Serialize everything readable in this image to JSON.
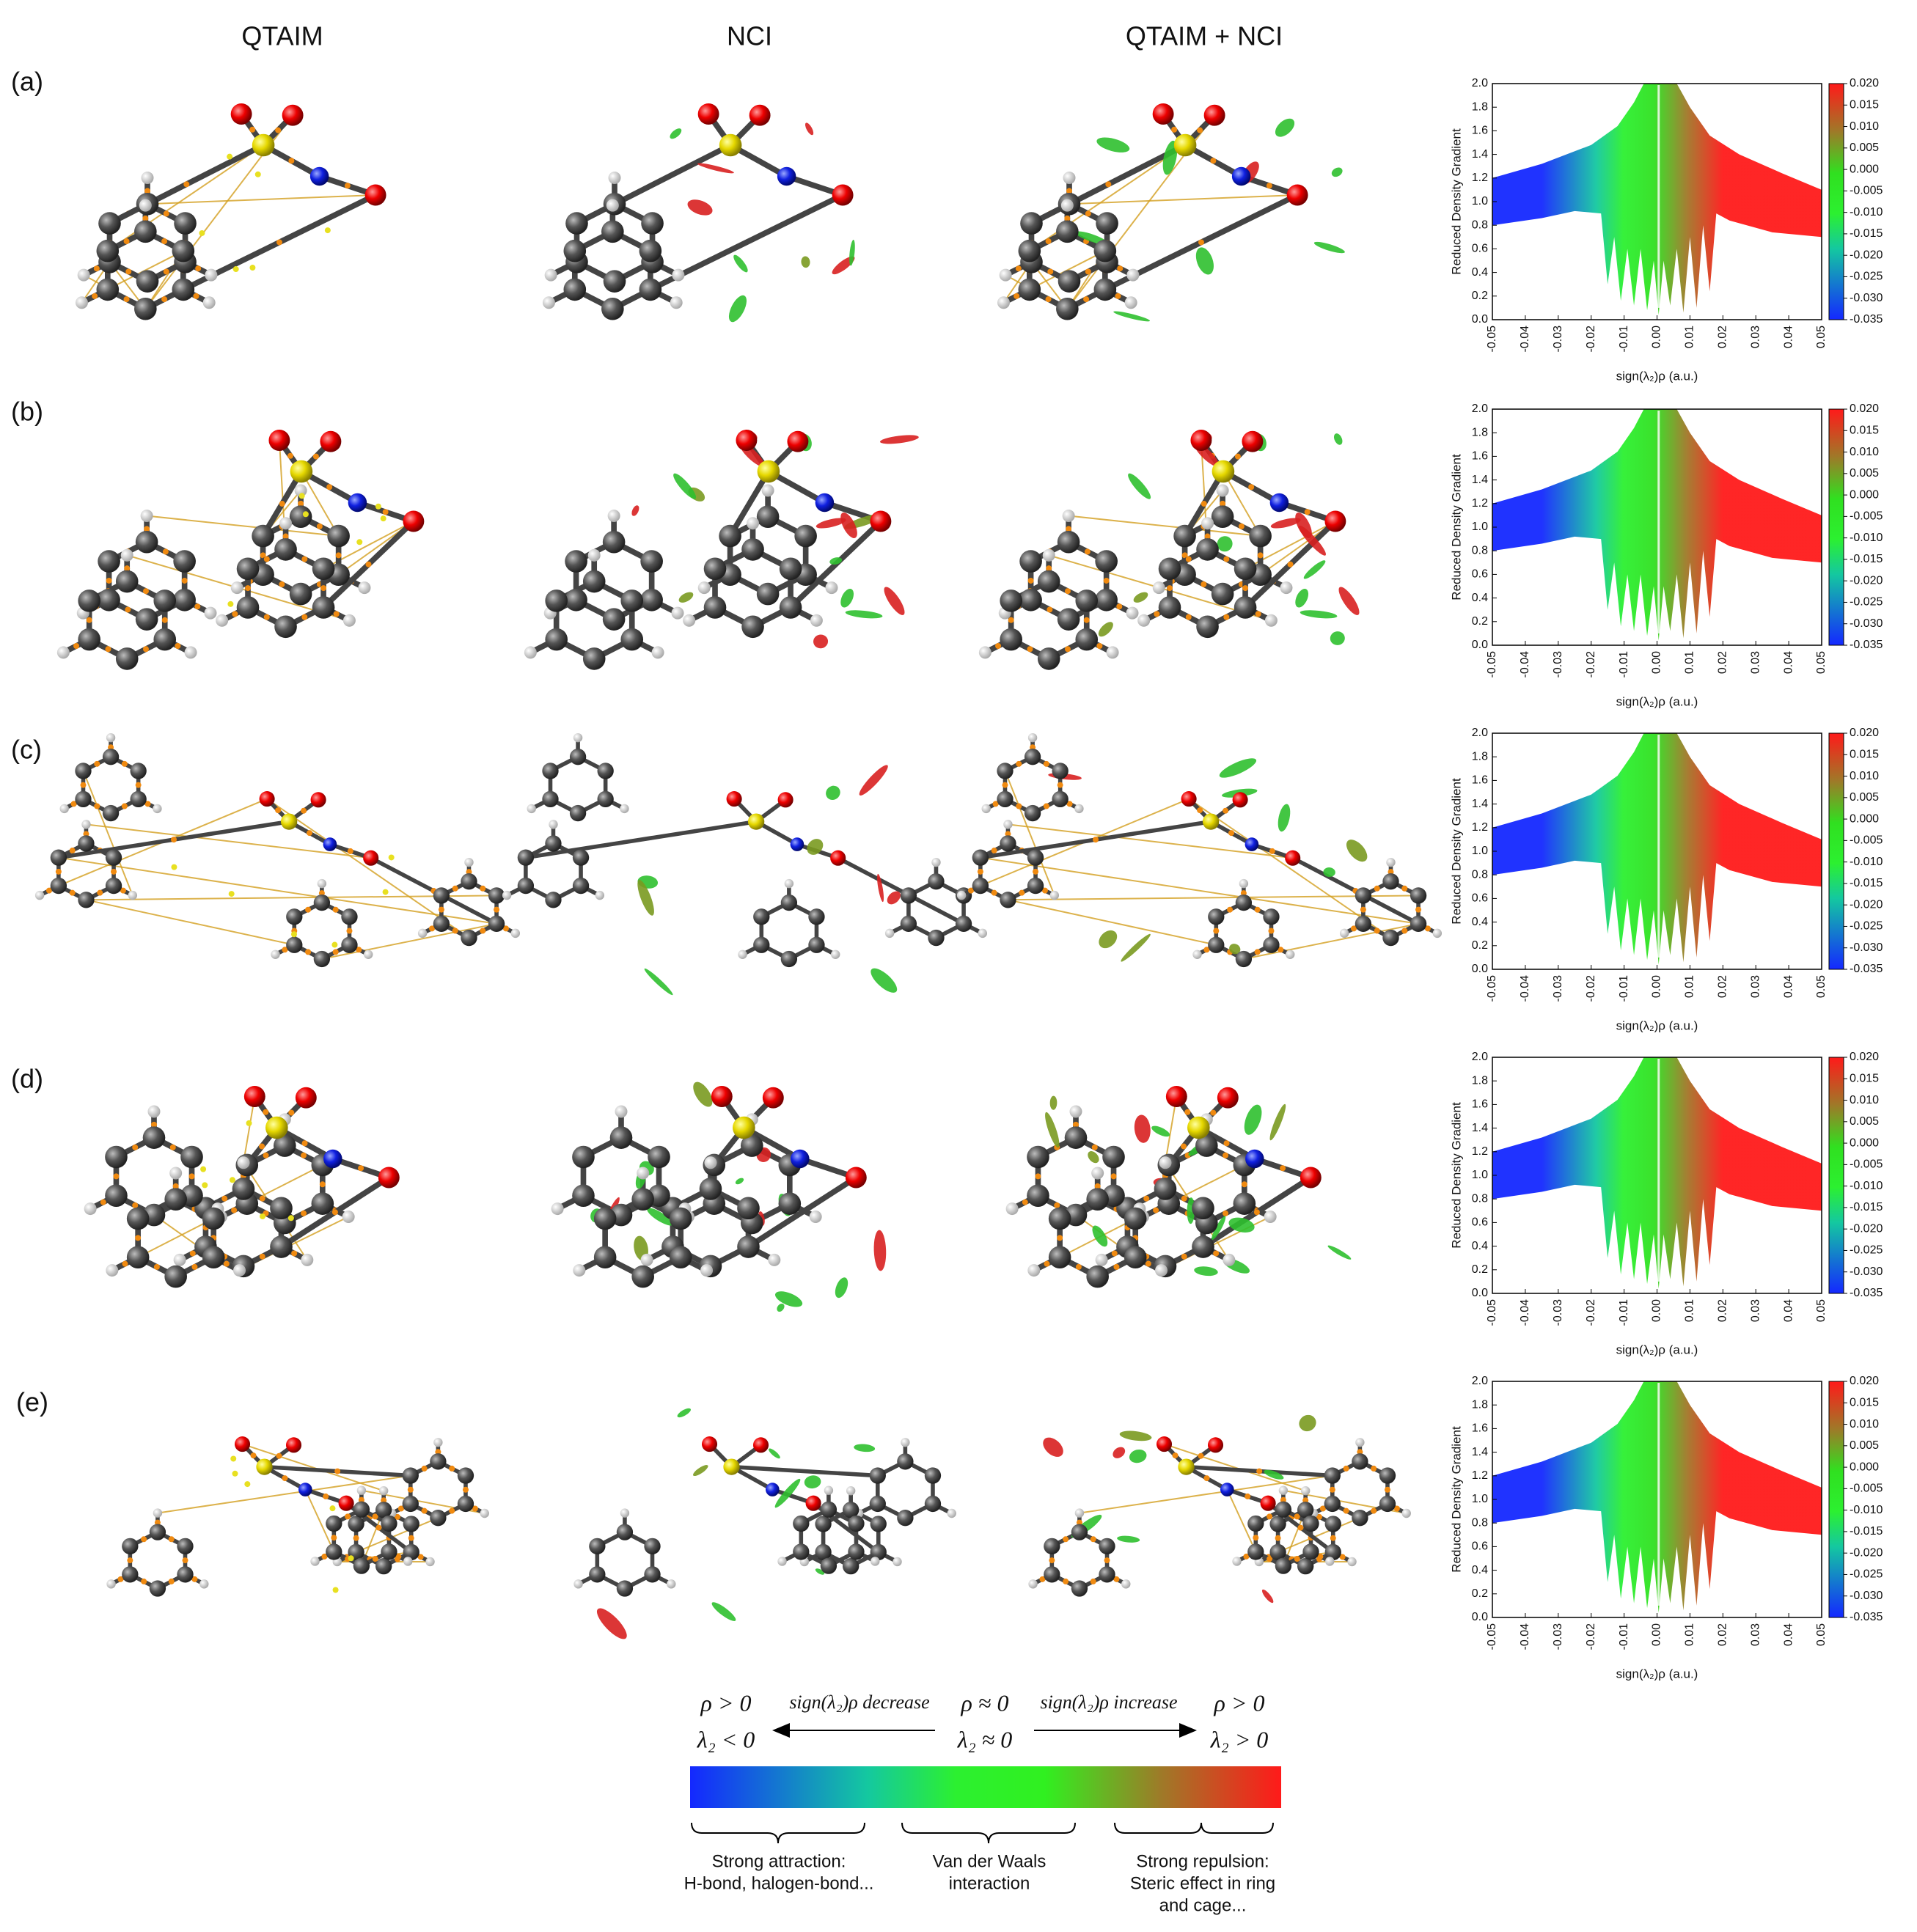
{
  "columns": [
    "QTAIM",
    "NCI",
    "QTAIM + NCI"
  ],
  "rows": [
    "(a)",
    "(b)",
    "(c)",
    "(d)",
    "(e)"
  ],
  "chart_data": [
    {
      "type": "scatter",
      "xlabel": "sign(λ₂)ρ (a.u.)",
      "ylabel": "Reduced Density Gradient",
      "xlim": [
        -0.05,
        0.05
      ],
      "xticks": [
        -0.05,
        -0.04,
        -0.03,
        -0.02,
        -0.01,
        {
          "value": 0,
          "label": "0.00"
        },
        0.01,
        0.02,
        0.03,
        0.04,
        0.05
      ],
      "ylim": [
        0,
        2
      ],
      "yticks": [
        {
          "value": 0,
          "label": "0.0"
        },
        0.2,
        0.4,
        0.6,
        0.8,
        {
          "value": 1,
          "label": "1.0"
        },
        1.2,
        1.4,
        1.6,
        1.8,
        {
          "value": 2,
          "label": "2.0"
        }
      ],
      "colorbar": {
        "lim": [
          -0.035,
          0.02
        ],
        "ticks": [
          {
            "value": 0.02,
            "label": "0.020"
          },
          0.015,
          {
            "value": 0.01,
            "label": "0.010"
          },
          0.005,
          {
            "value": 0,
            "label": "0.000"
          },
          -0.005,
          {
            "value": -0.01,
            "label": "-0.010"
          },
          -0.015,
          {
            "value": -0.02,
            "label": "-0.020"
          },
          -0.025,
          {
            "value": -0.03,
            "label": "-0.030"
          },
          -0.035
        ]
      }
    },
    {
      "type": "scatter",
      "xlabel": "sign(λ₂)ρ (a.u.)",
      "ylabel": "Reduced Density Gradient",
      "xlim": [
        -0.05,
        0.05
      ],
      "xticks": [
        -0.05,
        -0.04,
        -0.03,
        -0.02,
        -0.01,
        {
          "value": 0,
          "label": "0.00"
        },
        0.01,
        0.02,
        0.03,
        0.04,
        0.05
      ],
      "ylim": [
        0,
        2
      ],
      "yticks": [
        {
          "value": 0,
          "label": "0.0"
        },
        0.2,
        0.4,
        0.6,
        0.8,
        {
          "value": 1,
          "label": "1.0"
        },
        1.2,
        1.4,
        1.6,
        1.8,
        {
          "value": 2,
          "label": "2.0"
        }
      ],
      "colorbar": {
        "lim": [
          -0.035,
          0.02
        ],
        "ticks": [
          {
            "value": 0.02,
            "label": "0.020"
          },
          0.015,
          {
            "value": 0.01,
            "label": "0.010"
          },
          0.005,
          {
            "value": 0,
            "label": "0.000"
          },
          -0.005,
          {
            "value": -0.01,
            "label": "-0.010"
          },
          -0.015,
          {
            "value": -0.02,
            "label": "-0.020"
          },
          -0.025,
          {
            "value": -0.03,
            "label": "-0.030"
          },
          -0.035
        ]
      }
    },
    {
      "type": "scatter",
      "xlabel": "sign(λ₂)ρ (a.u.)",
      "ylabel": "Reduced Density Gradient",
      "xlim": [
        -0.05,
        0.05
      ],
      "xticks": [
        -0.05,
        -0.04,
        -0.03,
        -0.02,
        -0.01,
        {
          "value": 0,
          "label": "0.00"
        },
        0.01,
        0.02,
        0.03,
        0.04,
        0.05
      ],
      "ylim": [
        0,
        2
      ],
      "yticks": [
        {
          "value": 0,
          "label": "0.0"
        },
        0.2,
        0.4,
        0.6,
        0.8,
        {
          "value": 1,
          "label": "1.0"
        },
        1.2,
        1.4,
        1.6,
        1.8,
        {
          "value": 2,
          "label": "2.0"
        }
      ],
      "colorbar": {
        "lim": [
          -0.035,
          0.02
        ],
        "ticks": [
          {
            "value": 0.02,
            "label": "0.020"
          },
          0.015,
          {
            "value": 0.01,
            "label": "0.010"
          },
          0.005,
          {
            "value": 0,
            "label": "0.000"
          },
          -0.005,
          {
            "value": -0.01,
            "label": "-0.010"
          },
          -0.015,
          {
            "value": -0.02,
            "label": "-0.020"
          },
          -0.025,
          {
            "value": -0.03,
            "label": "-0.030"
          },
          -0.035
        ]
      }
    },
    {
      "type": "scatter",
      "xlabel": "sign(λ₂)ρ (a.u.)",
      "ylabel": "Reduced Density Gradient",
      "xlim": [
        -0.05,
        0.05
      ],
      "xticks": [
        -0.05,
        -0.04,
        -0.03,
        -0.02,
        -0.01,
        {
          "value": 0,
          "label": "0.00"
        },
        0.01,
        0.02,
        0.03,
        0.04,
        0.05
      ],
      "ylim": [
        0,
        2
      ],
      "yticks": [
        {
          "value": 0,
          "label": "0.0"
        },
        0.2,
        0.4,
        0.6,
        0.8,
        {
          "value": 1,
          "label": "1.0"
        },
        1.2,
        1.4,
        1.6,
        1.8,
        {
          "value": 2,
          "label": "2.0"
        }
      ],
      "colorbar": {
        "lim": [
          -0.035,
          0.02
        ],
        "ticks": [
          {
            "value": 0.02,
            "label": "0.020"
          },
          0.015,
          {
            "value": 0.01,
            "label": "0.010"
          },
          0.005,
          {
            "value": 0,
            "label": "0.000"
          },
          -0.005,
          {
            "value": -0.01,
            "label": "-0.010"
          },
          -0.015,
          {
            "value": -0.02,
            "label": "-0.020"
          },
          -0.025,
          {
            "value": -0.03,
            "label": "-0.030"
          },
          -0.035
        ]
      }
    },
    {
      "type": "scatter",
      "xlabel": "sign(λ₂)ρ (a.u.)",
      "ylabel": "Reduced Density Gradient",
      "xlim": [
        -0.05,
        0.05
      ],
      "xticks": [
        -0.05,
        -0.04,
        -0.03,
        -0.02,
        -0.01,
        {
          "value": 0,
          "label": "0.00"
        },
        0.01,
        0.02,
        0.03,
        0.04,
        0.05
      ],
      "ylim": [
        0,
        2
      ],
      "yticks": [
        {
          "value": 0,
          "label": "0.0"
        },
        0.2,
        0.4,
        0.6,
        0.8,
        {
          "value": 1,
          "label": "1.0"
        },
        1.2,
        1.4,
        1.6,
        1.8,
        {
          "value": 2,
          "label": "2.0"
        }
      ],
      "colorbar": {
        "lim": [
          -0.035,
          0.02
        ],
        "ticks": [
          {
            "value": 0.02,
            "label": "0.020"
          },
          0.015,
          {
            "value": 0.01,
            "label": "0.010"
          },
          0.005,
          {
            "value": 0,
            "label": "0.000"
          },
          -0.005,
          {
            "value": -0.01,
            "label": "-0.010"
          },
          -0.015,
          {
            "value": -0.02,
            "label": "-0.020"
          },
          -0.025,
          {
            "value": -0.03,
            "label": "-0.030"
          },
          -0.035
        ]
      }
    }
  ],
  "legend": {
    "left": [
      "ρ > 0",
      "λ₂ < 0"
    ],
    "decrease": "sign(λ₂)ρ decrease",
    "middle": [
      "ρ ≈ 0",
      "λ₂ ≈ 0"
    ],
    "increase": "sign(λ₂)ρ increase",
    "right": [
      "ρ > 0",
      "λ₂ > 0"
    ],
    "brackets": [
      [
        "Strong attraction:",
        "H-bond, halogen-bond..."
      ],
      [
        "Van der Waals",
        "interaction"
      ],
      [
        "Strong repulsion:",
        "Steric effect in ring",
        "and cage..."
      ]
    ]
  }
}
